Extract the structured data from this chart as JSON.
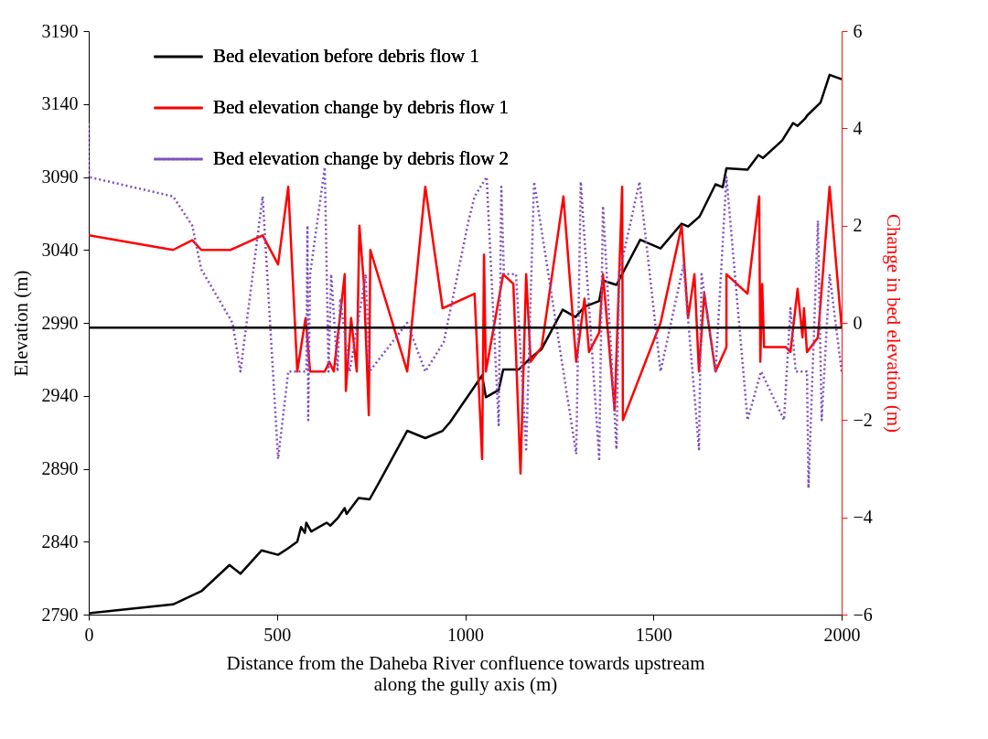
{
  "chart_data": {
    "type": "line",
    "xlabel": "Distance from the Daheba River confluence towards upstream\nalong the gully axis (m)",
    "ylabel": "Elevation (m)",
    "y2label": "Change in bed elevation (m)",
    "xlim": [
      0,
      2000
    ],
    "xticks": [
      0,
      500,
      1000,
      1500,
      2000
    ],
    "ylim": [
      2790,
      3190
    ],
    "yticks": [
      2790,
      2840,
      2890,
      2940,
      2990,
      3040,
      3090,
      3140,
      3190
    ],
    "y2lim": [
      -6,
      6
    ],
    "y2ticks": [
      -6,
      -4,
      -2,
      0,
      2,
      4,
      6
    ],
    "legend": "top",
    "ref_lines": [
      {
        "axis": "y2",
        "value": -0.1,
        "color": "#000000"
      }
    ],
    "series": [
      {
        "name": "Bed elevation before debris flow 1",
        "color": "#000000",
        "line_style": "solid",
        "x": [
          0,
          224,
          299,
          374,
          403,
          459,
          503,
          527,
          554,
          564,
          574,
          578,
          591,
          632,
          642,
          661,
          680,
          685,
          717,
          746,
          770,
          846,
          894,
          940,
          960,
          1045,
          1055,
          1089,
          1101,
          1142,
          1174,
          1203,
          1259,
          1293,
          1317,
          1356,
          1366,
          1402,
          1465,
          1519,
          1575,
          1592,
          1623,
          1665,
          1684,
          1694,
          1750,
          1779,
          1791,
          1842,
          1859,
          1871,
          1883,
          1903,
          1908,
          1944,
          1968,
          2000
        ],
        "values": [
          2791,
          2797,
          2806,
          2824,
          2818,
          2834,
          2831,
          2835,
          2840,
          2850,
          2846,
          2853,
          2847,
          2853,
          2851,
          2856,
          2863,
          2859,
          2870,
          2869,
          2880,
          2916,
          2911,
          2916,
          2922,
          2954,
          2939,
          2944,
          2958,
          2958,
          2966,
          2972,
          2999,
          2994,
          3001,
          3005,
          3019,
          3016,
          3047,
          3041,
          3058,
          3056,
          3063,
          3085,
          3083,
          3096,
          3095,
          3105,
          3103,
          3115,
          3122,
          3127,
          3125,
          3130,
          3132,
          3141,
          3160,
          3157
        ]
      },
      {
        "name": "Bed elevation change by debris flow  1",
        "color": "#ff0000",
        "line_style": "solid",
        "axis": "y2",
        "x": [
          0,
          224,
          275,
          299,
          377,
          462,
          503,
          530,
          554,
          576,
          588,
          627,
          639,
          651,
          680,
          683,
          697,
          712,
          719,
          731,
          744,
          748,
          846,
          894,
          940,
          1025,
          1045,
          1050,
          1055,
          1101,
          1128,
          1147,
          1162,
          1174,
          1203,
          1261,
          1295,
          1317,
          1329,
          1356,
          1366,
          1397,
          1417,
          1419,
          1519,
          1575,
          1592,
          1609,
          1621,
          1635,
          1665,
          1694,
          1694,
          1750,
          1781,
          1784,
          1789,
          1794,
          1852,
          1864,
          1883,
          1896,
          1900,
          1908,
          1937,
          1968,
          2000
        ],
        "values": [
          1.8,
          1.5,
          1.7,
          1.5,
          1.5,
          1.8,
          1.2,
          2.8,
          -1,
          0.1,
          -1,
          -1,
          -0.8,
          -1,
          1,
          -1.4,
          0.1,
          -1,
          2,
          0.8,
          -1.9,
          1.5,
          -1,
          2.8,
          0.3,
          0.6,
          -2.8,
          1.4,
          -1,
          1,
          0.8,
          -3.1,
          1,
          -0.8,
          -0.5,
          2.6,
          -0.8,
          0.5,
          -0.6,
          -0.2,
          1,
          -1.8,
          2.8,
          -2,
          0,
          2,
          0.1,
          1,
          -1,
          0.6,
          -1,
          -0.5,
          1,
          0.6,
          2.6,
          -0.8,
          0.8,
          -0.5,
          -0.5,
          -0.6,
          0.7,
          -0.3,
          0.3,
          -0.6,
          -0.3,
          2.8,
          -0.1
        ]
      },
      {
        "name": "Bed elevation change by debris flow 2",
        "color": "#7f4fbf",
        "line_style": "dotted",
        "axis": "y2",
        "x": [
          0,
          0,
          224,
          275,
          299,
          382,
          403,
          462,
          503,
          530,
          578,
          581,
          583,
          588,
          627,
          637,
          644,
          661,
          668,
          693,
          717,
          736,
          746,
          846,
          894,
          943,
          1009,
          1025,
          1057,
          1089,
          1096,
          1103,
          1135,
          1162,
          1183,
          1295,
          1307,
          1356,
          1366,
          1402,
          1409,
          1463,
          1519,
          1580,
          1621,
          1628,
          1665,
          1694,
          1750,
          1786,
          1847,
          1864,
          1878,
          1908,
          1912,
          1937,
          1947,
          1968,
          2000
        ],
        "values": [
          4.1,
          3,
          2.6,
          2,
          1.1,
          0,
          -1,
          2.6,
          -2.8,
          -1,
          -1,
          2,
          -2,
          1,
          3.2,
          -1,
          1,
          -1,
          0.5,
          -1,
          0.1,
          1,
          -1,
          0,
          -1,
          -0.4,
          2.1,
          2.6,
          3,
          -2.1,
          2.8,
          1,
          1,
          -2.6,
          2.9,
          -2.7,
          2.9,
          -2.8,
          2.4,
          -2.6,
          1,
          2.9,
          -1,
          1.2,
          -2.6,
          1,
          -1,
          3,
          -2,
          -1,
          -2,
          0.3,
          -1,
          -1,
          -3.4,
          2.1,
          -2,
          1,
          -1
        ]
      }
    ]
  }
}
